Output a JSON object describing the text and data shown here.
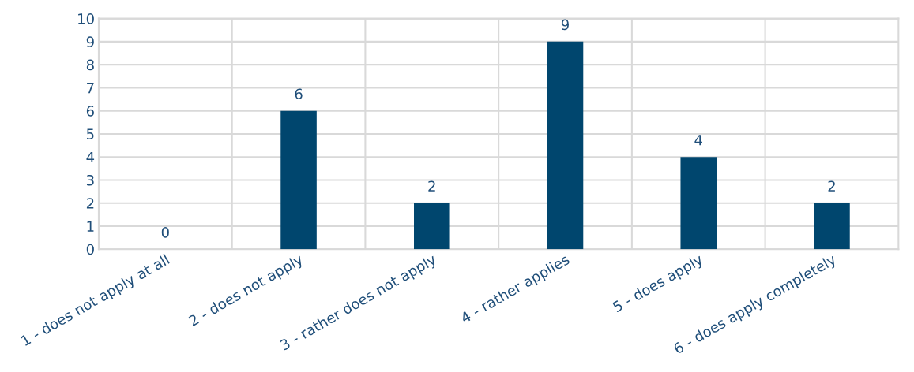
{
  "chart_data": {
    "type": "bar",
    "categories": [
      "1 - does not apply at all",
      "2 - does not apply",
      "3 - rather does not apply",
      "4 - rather applies",
      "5 - does apply",
      "6 - does apply completely"
    ],
    "values": [
      0,
      6,
      2,
      9,
      4,
      2
    ],
    "color": "#00466e",
    "ylim": [
      0,
      10
    ],
    "yticks": [
      0,
      1,
      2,
      3,
      4,
      5,
      6,
      7,
      8,
      9,
      10
    ],
    "grid": true,
    "data_labels": true
  }
}
